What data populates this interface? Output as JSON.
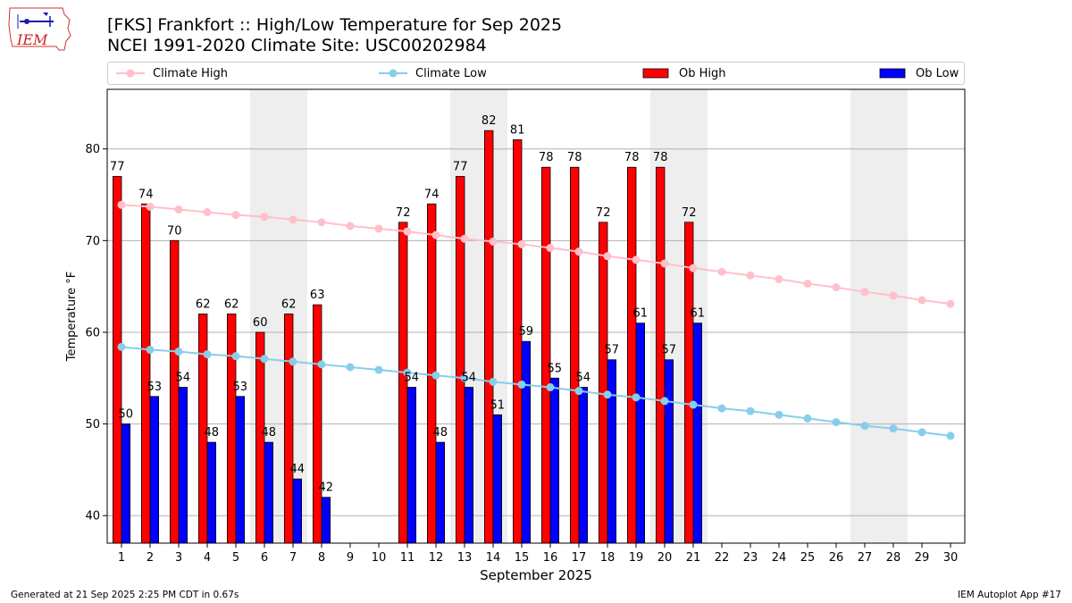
{
  "header": {
    "logo_text": "IEM",
    "title_line1": "[FKS] Frankfort :: High/Low Temperature for Sep 2025",
    "title_line2": "NCEI 1991-2020 Climate Site: USC00202984"
  },
  "legend": [
    {
      "label": "Climate High",
      "kind": "line",
      "color": "#ffc0cb"
    },
    {
      "label": "Climate Low",
      "kind": "line",
      "color": "#87ceeb"
    },
    {
      "label": "Ob High",
      "kind": "bar",
      "color": "#ff0000"
    },
    {
      "label": "Ob Low",
      "kind": "bar",
      "color": "#0000ff"
    }
  ],
  "chart_data": {
    "type": "bar",
    "xlabel": "September 2025",
    "ylabel": "Temperature °F",
    "ylim": [
      37,
      86.5
    ],
    "yticks": [
      40,
      50,
      60,
      70,
      80
    ],
    "grid": "horizontal",
    "days": [
      1,
      2,
      3,
      4,
      5,
      6,
      7,
      8,
      9,
      10,
      11,
      12,
      13,
      14,
      15,
      16,
      17,
      18,
      19,
      20,
      21,
      22,
      23,
      24,
      25,
      26,
      27,
      28,
      29,
      30
    ],
    "weekend_shading_days": [
      [
        6,
        7
      ],
      [
        13,
        14
      ],
      [
        20,
        21
      ],
      [
        27,
        28
      ]
    ],
    "series": [
      {
        "name": "Ob High",
        "type": "bar",
        "color": "#ff0000",
        "values": [
          77,
          74,
          70,
          62,
          62,
          60,
          62,
          63,
          null,
          null,
          72,
          74,
          77,
          82,
          81,
          78,
          78,
          72,
          78,
          78,
          72,
          null,
          null,
          null,
          null,
          null,
          null,
          null,
          null,
          null
        ],
        "labels": [
          "77",
          "74",
          "70",
          "62",
          "62",
          "60",
          "62",
          "63",
          null,
          null,
          "72",
          "74",
          "77",
          "82",
          "81",
          "78",
          "78",
          "72",
          "78",
          "78",
          "72",
          null,
          null,
          null,
          null,
          null,
          null,
          null,
          null,
          null
        ]
      },
      {
        "name": "Ob Low",
        "type": "bar",
        "color": "#0000ff",
        "values": [
          50,
          53,
          54,
          48,
          53,
          48,
          44,
          42,
          null,
          null,
          54,
          48,
          54,
          51,
          59,
          55,
          54,
          57,
          61,
          57,
          61,
          null,
          null,
          null,
          null,
          null,
          null,
          null,
          null,
          null
        ],
        "labels": [
          "50",
          "53",
          "54",
          "48",
          "53",
          "48",
          "44",
          "42",
          null,
          null,
          "54",
          "48",
          "54",
          "51",
          "59",
          "55",
          "54",
          "57",
          "61",
          "57",
          "61",
          null,
          null,
          null,
          null,
          null,
          null,
          null,
          null,
          null
        ]
      },
      {
        "name": "Climate High",
        "type": "line",
        "color": "#ffc0cb",
        "values": [
          73.9,
          73.7,
          73.4,
          73.1,
          72.8,
          72.6,
          72.3,
          72.0,
          71.6,
          71.3,
          71.0,
          70.6,
          70.2,
          69.9,
          69.6,
          69.2,
          68.8,
          68.3,
          67.9,
          67.5,
          67.0,
          66.6,
          66.2,
          65.8,
          65.3,
          64.9,
          64.4,
          64.0,
          63.5,
          63.1
        ]
      },
      {
        "name": "Climate Low",
        "type": "line",
        "color": "#87ceeb",
        "values": [
          58.4,
          58.1,
          57.9,
          57.6,
          57.4,
          57.1,
          56.8,
          56.5,
          56.2,
          55.9,
          55.6,
          55.3,
          55.0,
          54.6,
          54.3,
          54.0,
          53.6,
          53.2,
          52.9,
          52.5,
          52.1,
          51.7,
          51.4,
          51.0,
          50.6,
          50.2,
          49.8,
          49.5,
          49.1,
          48.7
        ]
      }
    ]
  },
  "footer": {
    "left": "Generated at 21 Sep 2025 2:25 PM CDT in 0.67s",
    "right": "IEM Autoplot App #17"
  }
}
